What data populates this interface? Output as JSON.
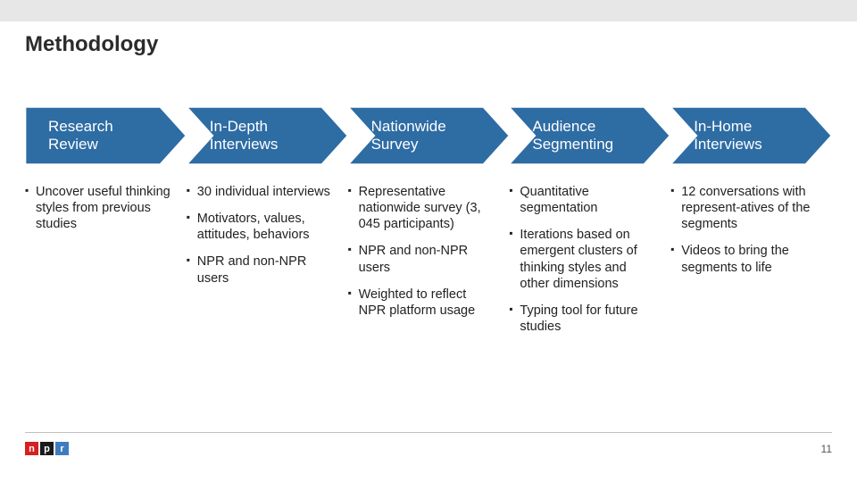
{
  "title": "Methodology",
  "page_number": "11",
  "logo": {
    "letters": [
      "n",
      "p",
      "r"
    ],
    "colors": [
      "#d62021",
      "#1a1a1a",
      "#3f7cbf"
    ]
  },
  "stage_fill": "#2e6ca4",
  "stage_stroke": "#ffffff",
  "stages": [
    {
      "label": "Research\nReview",
      "bullets": [
        "Uncover useful thinking styles from previous studies"
      ]
    },
    {
      "label": "In-Depth\nInterviews",
      "bullets": [
        "30 individual interviews",
        "Motivators, values, attitudes, behaviors",
        "NPR and non-NPR users"
      ]
    },
    {
      "label": "Nationwide\nSurvey",
      "bullets": [
        "Representative nationwide survey (3, 045 participants)",
        "NPR and non-NPR users",
        "Weighted to reflect NPR platform usage"
      ]
    },
    {
      "label": "Audience\nSegmenting",
      "bullets": [
        "Quantitative segmentation",
        "Iterations based on emergent clusters of thinking styles and other dimensions",
        "Typing tool for future studies"
      ]
    },
    {
      "label": "In-Home\nInterviews",
      "bullets": [
        "12 conversations with represent-atives of the segments",
        "Videos to bring the segments to life"
      ]
    }
  ]
}
